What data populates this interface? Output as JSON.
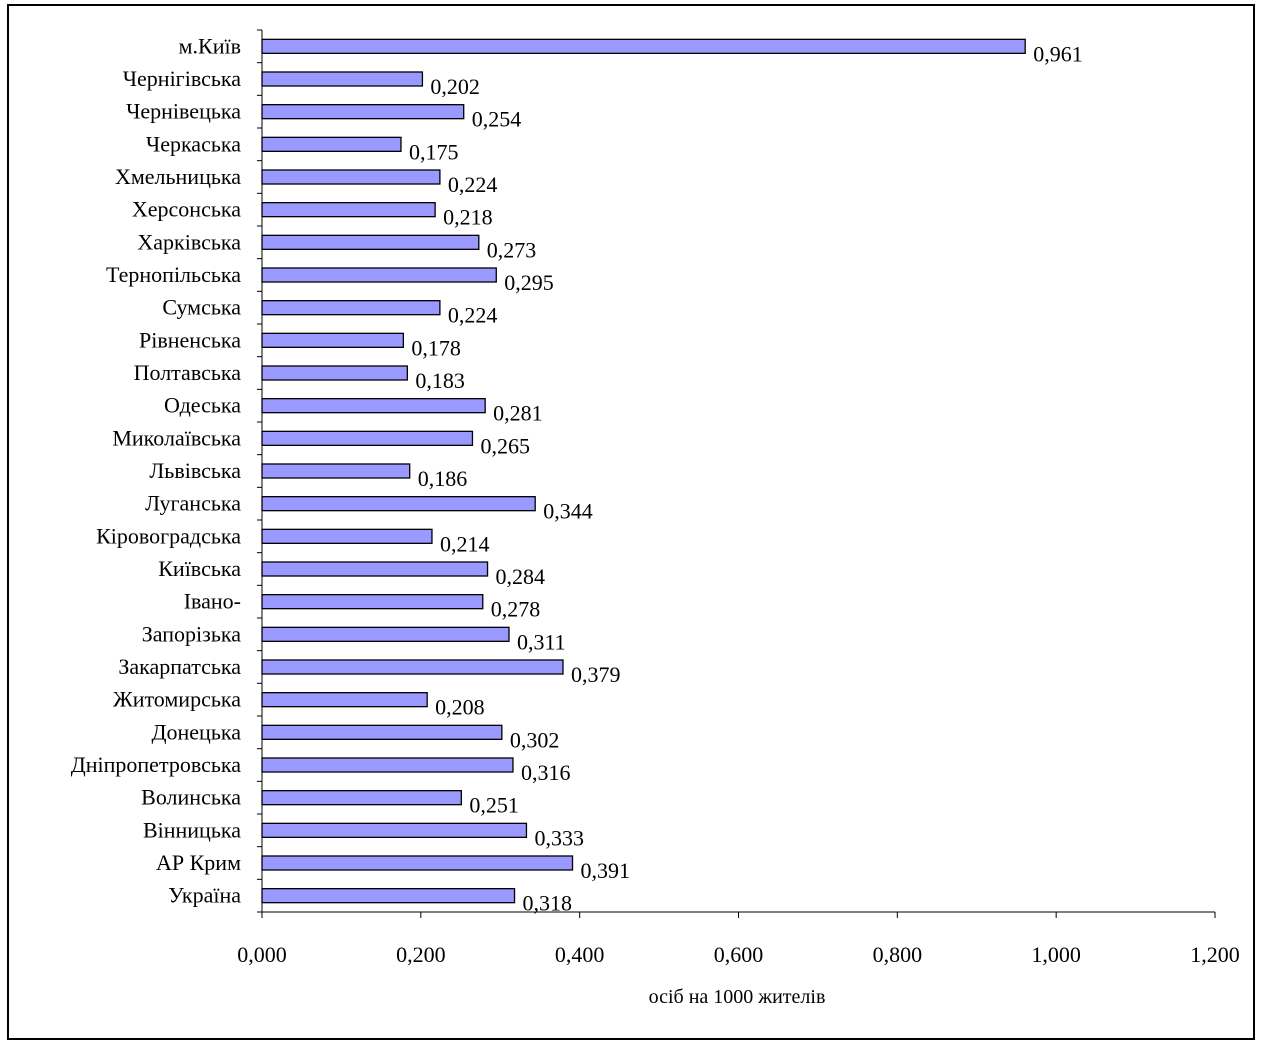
{
  "chart_data": {
    "type": "bar",
    "orientation": "horizontal",
    "title": "",
    "xlabel": "осіб на 1000 жителів",
    "ylabel": "",
    "xlim": [
      0,
      1.2
    ],
    "grid": false,
    "bar_color": "#9999ff",
    "categories": [
      "Україна",
      "АР Крим",
      "Вінницька",
      "Волинська",
      "Дніпропетровська",
      "Донецька",
      "Житомирська",
      "Закарпатська",
      "Запорізька",
      "Івано-",
      "Київська",
      "Кіровоградська",
      "Луганська",
      "Львівська",
      "Миколаївська",
      "Одеська",
      "Полтавська",
      "Рівненська",
      "Сумська",
      "Тернопільська",
      "Харківська",
      "Херсонська",
      "Хмельницька",
      "Черкаська",
      "Чернівецька",
      "Чернігівська",
      "м.Київ"
    ],
    "values": [
      0.318,
      0.391,
      0.333,
      0.251,
      0.316,
      0.302,
      0.208,
      0.379,
      0.311,
      0.278,
      0.284,
      0.214,
      0.344,
      0.186,
      0.265,
      0.281,
      0.183,
      0.178,
      0.224,
      0.295,
      0.273,
      0.218,
      0.224,
      0.175,
      0.254,
      0.202,
      0.961
    ],
    "value_labels": [
      "0,318",
      "0,391",
      "0,333",
      "0,251",
      "0,316",
      "0,302",
      "0,208",
      "0,379",
      "0,311",
      "0,278",
      "0,284",
      "0,214",
      "0,344",
      "0,186",
      "0,265",
      "0,281",
      "0,183",
      "0,178",
      "0,224",
      "0,295",
      "0,273",
      "0,218",
      "0,224",
      "0,175",
      "0,254",
      "0,202",
      "0,961"
    ],
    "x_ticks": [
      "0,000",
      "0,200",
      "0,400",
      "0,600",
      "0,800",
      "1,000",
      "1,200"
    ],
    "x_tick_values": [
      0,
      0.2,
      0.4,
      0.6,
      0.8,
      1.0,
      1.2
    ]
  }
}
